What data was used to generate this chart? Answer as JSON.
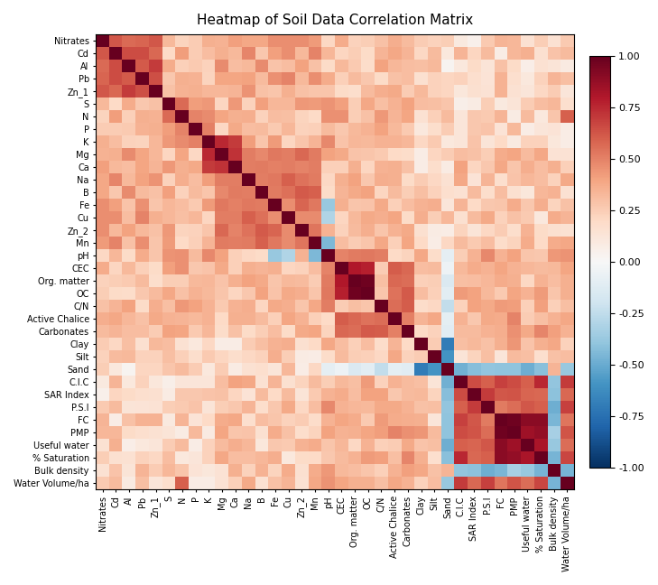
{
  "title": "Heatmap of Soil Data Correlation Matrix",
  "labels": [
    "Nitrates",
    "Cd",
    "Al",
    "Pb",
    "Zn_1",
    "S",
    "N",
    "P",
    "K",
    "Mg",
    "Ca",
    "Na",
    "B",
    "Fe",
    "Cu",
    "Zn_2",
    "Mn",
    "pH",
    "CEC",
    "Org. matter",
    "OC",
    "C/N",
    "Active Chalice",
    "Carbonates",
    "Clay",
    "Silt",
    "Sand",
    "C.I.C",
    "SAR Index",
    "P.S.I",
    "FC",
    "PMP",
    "Useful water",
    "% Saturation",
    "Bulk density",
    "Water Volume/ha"
  ],
  "vmin": -1.0,
  "vmax": 1.0,
  "cmap": "RdBu_r",
  "figsize": [
    7.29,
    6.48
  ],
  "dpi": 100,
  "title_fontsize": 11,
  "tick_fontsize": 7,
  "cbar_fontsize": 8
}
